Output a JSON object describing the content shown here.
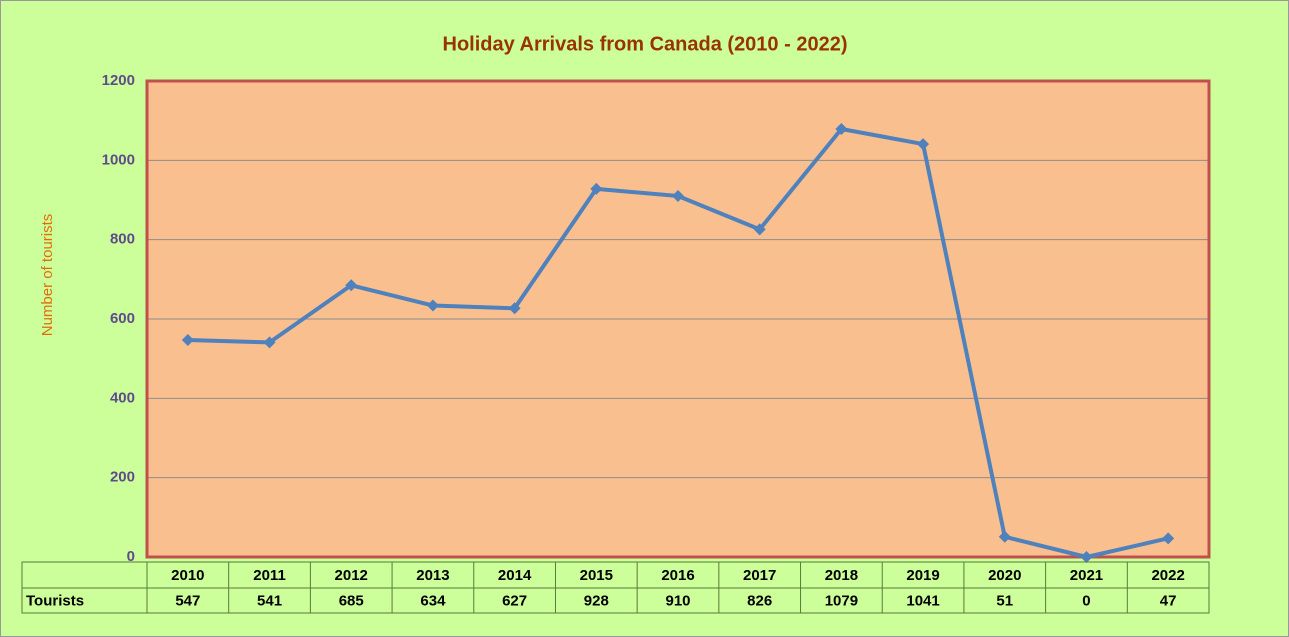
{
  "chart_data": {
    "type": "line",
    "title": "Holiday Arrivals from Canada (2010 - 2022)",
    "y_label": "Number  of tourists",
    "categories": [
      "2010",
      "2011",
      "2012",
      "2013",
      "2014",
      "2015",
      "2016",
      "2017",
      "2018",
      "2019",
      "2020",
      "2021",
      "2022"
    ],
    "series": [
      {
        "name": "Tourists",
        "color": "#4f81bd",
        "values": [
          547,
          541,
          685,
          634,
          627,
          928,
          910,
          826,
          1079,
          1041,
          51,
          0,
          47
        ]
      }
    ],
    "ylim": [
      0,
      1200
    ],
    "yticks": [
      0,
      200,
      400,
      600,
      800,
      1000,
      1200
    ],
    "grid": true,
    "data_table": true
  }
}
